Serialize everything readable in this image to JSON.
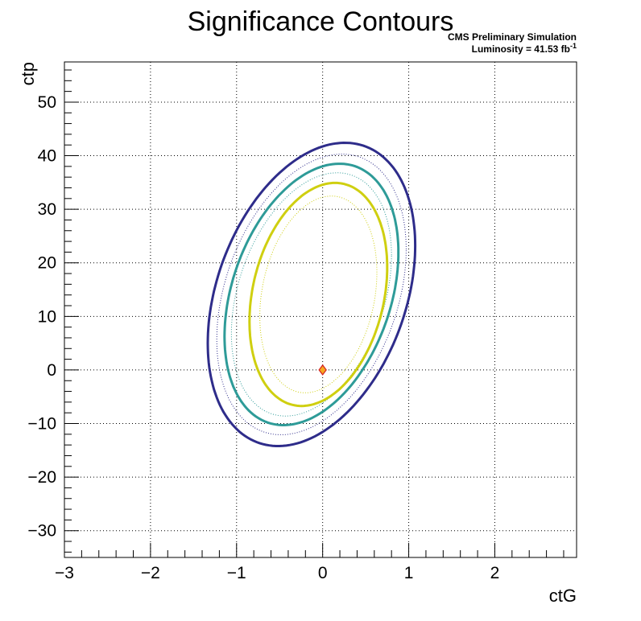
{
  "chart_data": {
    "type": "contour",
    "title": "Significance Contours",
    "annotations": {
      "line1": "CMS Preliminary Simulation",
      "line2_prefix": "Luminosity = 41.53 fb",
      "line2_sup": "-1"
    },
    "xlabel": "ctG",
    "ylabel": "ctp",
    "xlim": [
      -3,
      2.95
    ],
    "ylim": [
      -35,
      57.5
    ],
    "xticks": [
      -3,
      -2,
      -1,
      0,
      1,
      2
    ],
    "xtick_labels": [
      "−3",
      "−2",
      "−1",
      "0",
      "1",
      "2"
    ],
    "yticks": [
      -30,
      -20,
      -10,
      0,
      10,
      20,
      30,
      40,
      50
    ],
    "ytick_labels": [
      "−30",
      "−20",
      "−10",
      "0",
      "10",
      "20",
      "30",
      "40",
      "50"
    ],
    "grid": true,
    "colors": {
      "outer": "#2e2c8a",
      "middle": "#2e9b98",
      "inner": "#cfcf10",
      "marker_fill": "#f6a821",
      "marker_edge": "#d42020"
    },
    "contours": [
      {
        "level": "outer",
        "style": "solid",
        "cx": -0.13,
        "cy": 14.1,
        "a": 1.205,
        "b": 26.8,
        "tilt": 0.34,
        "width": 3
      },
      {
        "level": "outer",
        "style": "dotted",
        "cx": -0.13,
        "cy": 14.1,
        "a": 1.1,
        "b": 24.8,
        "tilt": 0.34,
        "width": 1
      },
      {
        "level": "middle",
        "style": "solid",
        "cx": -0.13,
        "cy": 14.1,
        "a": 1.01,
        "b": 23.1,
        "tilt": 0.34,
        "width": 3
      },
      {
        "level": "middle",
        "style": "dotted",
        "cx": -0.13,
        "cy": 14.1,
        "a": 0.93,
        "b": 21.5,
        "tilt": 0.34,
        "width": 1
      },
      {
        "level": "inner",
        "style": "solid",
        "cx": -0.05,
        "cy": 14.1,
        "a": 0.8,
        "b": 20.2,
        "tilt": 0.25,
        "width": 3
      },
      {
        "level": "inner",
        "style": "dotted",
        "cx": -0.05,
        "cy": 14.1,
        "a": 0.68,
        "b": 17.9,
        "tilt": 0.23,
        "width": 1
      }
    ],
    "marker": {
      "x": 0,
      "y": 0,
      "shape": "diamond"
    }
  }
}
